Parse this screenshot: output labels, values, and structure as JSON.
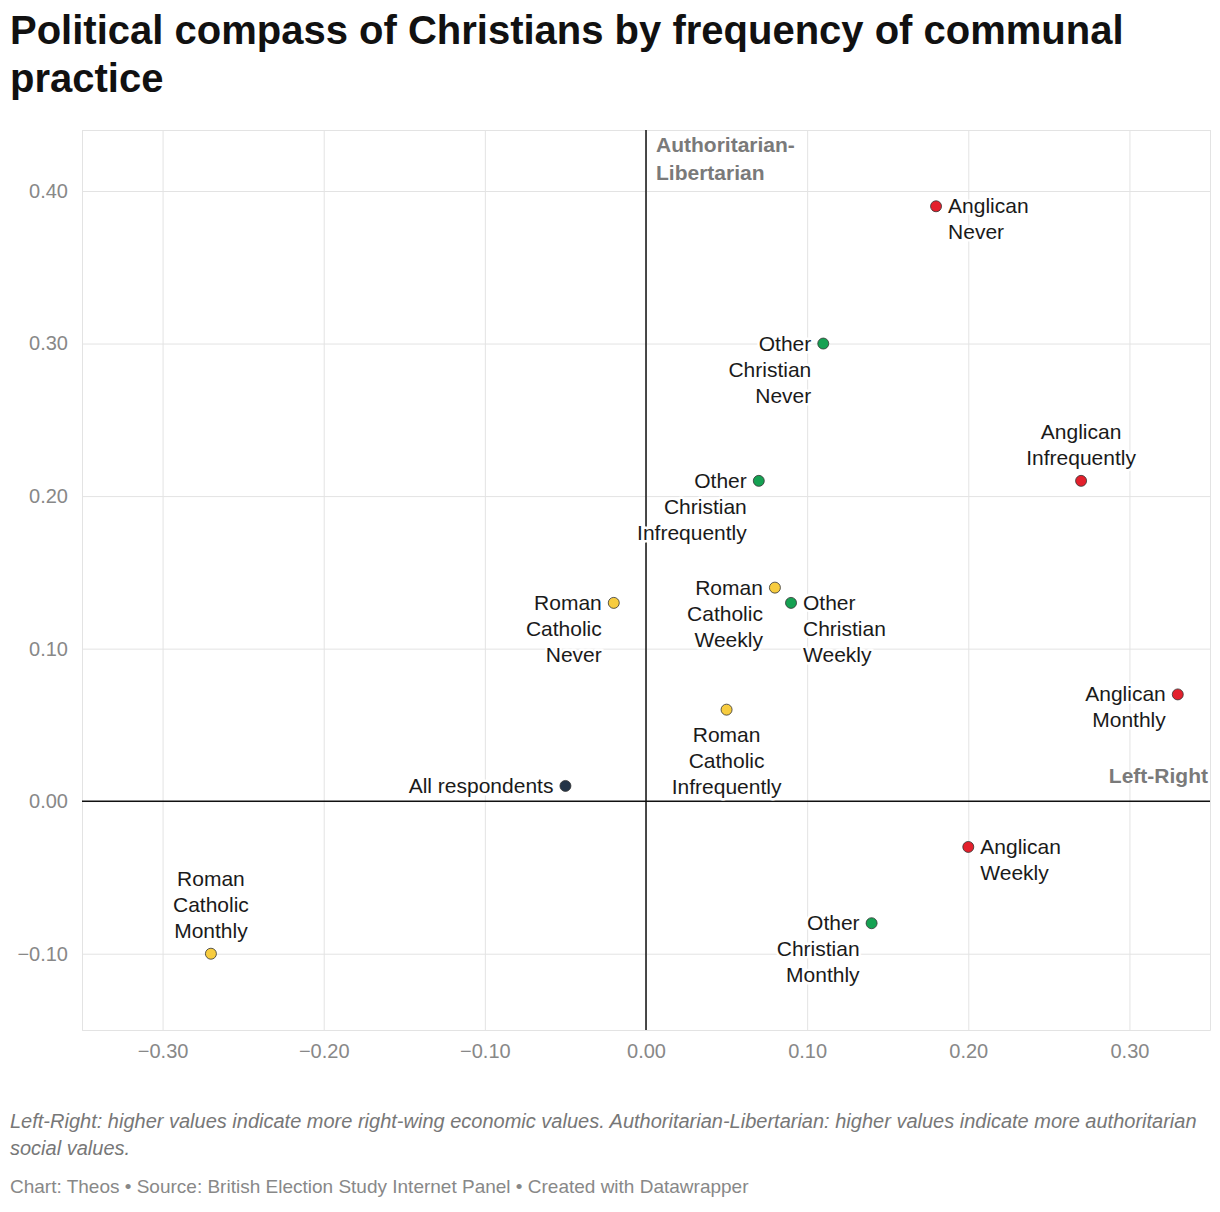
{
  "chart_data": {
    "type": "scatter",
    "title": "Political compass of Christians by frequency of communal practice",
    "x_label": "Left-Right",
    "y_label": "Authoritarian-Libertarian",
    "note": "Left-Right: higher values indicate more right-wing economic values. Authoritarian-Libertarian: higher values indicate more authoritarian social values.",
    "source": "Chart: Theos • Source: British Election Study Internet Panel • Created with Datawrapper",
    "x": [
      0.18,
      0.11,
      0.27,
      0.07,
      -0.02,
      0.08,
      0.09,
      0.33,
      0.05,
      -0.05,
      0.2,
      0.14,
      -0.27
    ],
    "values": [
      0.39,
      0.3,
      0.21,
      0.21,
      0.13,
      0.14,
      0.13,
      0.07,
      0.06,
      0.01,
      -0.03,
      -0.08,
      -0.1
    ],
    "labels": [
      "Anglican\nNever",
      "Other\nChristian\nNever",
      "Anglican\nInfrequently",
      "Other\nChristian\nInfrequently",
      "Roman\nCatholic\nNever",
      "Roman\nCatholic\nWeekly",
      "Other\nChristian\nWeekly",
      "Anglican\nMonthly",
      "Roman\nCatholic\nInfrequently",
      "All respondents",
      "Anglican\nWeekly",
      "Other\nChristian\nMonthly",
      "Roman\nCatholic\nMonthly"
    ],
    "colors": [
      "#e3202c",
      "#15a152",
      "#e3202c",
      "#15a152",
      "#f7cc3f",
      "#f7cc3f",
      "#15a152",
      "#e3202c",
      "#f7cc3f",
      "#243447",
      "#e3202c",
      "#15a152",
      "#f7cc3f"
    ],
    "marker": "circle",
    "grid": true,
    "xlim": [
      -0.35,
      0.35
    ],
    "ylim": [
      -0.15,
      0.44
    ],
    "xticks": [
      {
        "value": -0.3,
        "label": "−0.30"
      },
      {
        "value": -0.2,
        "label": "−0.20"
      },
      {
        "value": -0.1,
        "label": "−0.10"
      },
      {
        "value": 0,
        "label": "0.00"
      },
      {
        "value": 0.1,
        "label": "0.10"
      },
      {
        "value": 0.2,
        "label": "0.20"
      },
      {
        "value": 0.3,
        "label": "0.30"
      }
    ],
    "yticks": [
      {
        "value": -0.1,
        "label": "−0.10"
      },
      {
        "value": 0,
        "label": "0.00"
      },
      {
        "value": 0.1,
        "label": "0.10"
      },
      {
        "value": 0.2,
        "label": "0.20"
      },
      {
        "value": 0.3,
        "label": "0.30"
      },
      {
        "value": 0.4,
        "label": "0.40"
      }
    ]
  }
}
